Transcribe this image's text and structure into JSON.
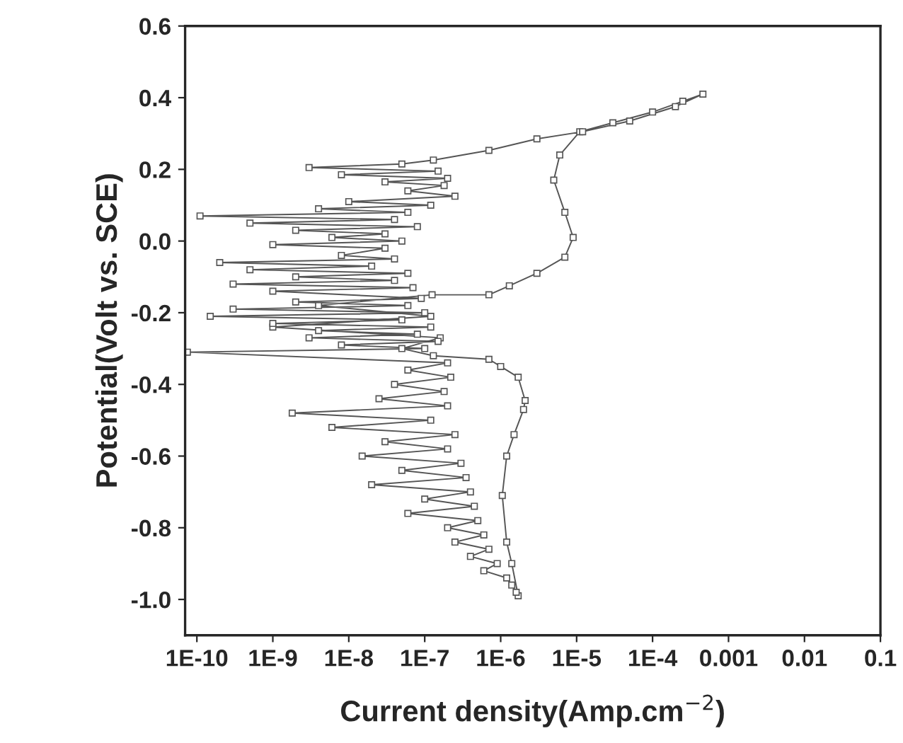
{
  "chart_data": {
    "type": "line",
    "xlabel": "Current density(Amp.cm$^{−2}$)",
    "ylabel": "Potential(Volt vs. SCE)",
    "log": "x",
    "grid": false,
    "marker": "square",
    "line_style": "solid",
    "xlim": [
      7e-11,
      0.1
    ],
    "xticks": [
      {
        "value": 1e-10,
        "label": "1E-10"
      },
      {
        "value": 1e-09,
        "label": "1E-9"
      },
      {
        "value": 1e-08,
        "label": "1E-8"
      },
      {
        "value": 1e-07,
        "label": "1E-7"
      },
      {
        "value": 1e-06,
        "label": "1E-6"
      },
      {
        "value": 1e-05,
        "label": "1E-5"
      },
      {
        "value": 0.0001,
        "label": "1E-4"
      },
      0.001,
      0.01,
      0.1
    ],
    "ylim": [
      -1.1,
      0.6
    ],
    "yticks": [
      {
        "value": -1.0,
        "label": "-1.0"
      },
      {
        "value": -0.8,
        "label": "-0.8"
      },
      {
        "value": -0.6,
        "label": "-0.6"
      },
      {
        "value": -0.4,
        "label": "-0.4"
      },
      {
        "value": -0.2,
        "label": "-0.2"
      },
      {
        "value": 0.0,
        "label": "0.0"
      },
      0.2,
      0.4,
      0.6
    ],
    "series": [
      {
        "color": "#555555",
        "x": [
          1.7e-06,
          1.4e-06,
          1.2e-06,
          1.05e-06,
          1.2e-06,
          1.5e-06,
          2e-06,
          2.1e-06,
          1.7e-06,
          1e-06,
          7e-07,
          1.3e-07,
          5e-08,
          1.6e-07,
          1e-09,
          1.2e-07,
          4e-09,
          1.25e-07,
          7e-07,
          1.3e-06,
          3e-06,
          7e-06,
          9e-06,
          7e-06,
          5e-06,
          6e-06,
          1.1e-05,
          3e-05,
          0.0001,
          0.00025,
          0.00046,
          0.0002,
          5e-05,
          1.2e-05,
          3e-06,
          7e-07,
          1.3e-07,
          5e-08,
          3e-09,
          1.5e-07,
          8e-09,
          2e-07,
          3e-08,
          1.8e-07,
          6e-08,
          2.5e-07,
          1e-08,
          1.2e-07,
          4e-09,
          6e-08,
          1.1e-10,
          4e-08,
          5e-10,
          8e-08,
          2e-09,
          3e-08,
          6e-09,
          5e-08,
          1e-09,
          3e-08,
          8e-09,
          4e-08,
          2e-10,
          2e-08,
          5e-10,
          6e-08,
          2e-09,
          4e-08,
          3e-10,
          7e-08,
          1e-09,
          9e-08,
          2e-09,
          6e-08,
          3e-10,
          1e-07,
          1.5e-10,
          5e-08,
          1e-09,
          1.2e-07,
          4e-09,
          8e-08,
          3e-09,
          1.5e-07,
          8e-09,
          1e-07,
          7.5e-11,
          2e-07,
          6e-08,
          2.2e-07,
          4e-08,
          1.8e-07,
          2.5e-08,
          2e-07,
          1.8e-09,
          1.2e-07,
          6e-09,
          2.5e-07,
          3e-08,
          2e-07,
          1.5e-08,
          3e-07,
          5e-08,
          3.5e-07,
          2e-08,
          4e-07,
          1e-07,
          4.5e-07,
          6e-08,
          5e-07,
          2e-07,
          6e-07,
          2.5e-07,
          7e-07,
          4e-07,
          9e-07,
          6e-07,
          1.2e-06,
          1.4e-06,
          1.6e-06
        ],
        "values": [
          -0.99,
          -0.9,
          -0.84,
          -0.71,
          -0.6,
          -0.54,
          -0.47,
          -0.445,
          -0.38,
          -0.35,
          -0.33,
          -0.32,
          -0.3,
          -0.27,
          -0.24,
          -0.21,
          -0.18,
          -0.15,
          -0.15,
          -0.125,
          -0.09,
          -0.045,
          0.01,
          0.08,
          0.17,
          0.24,
          0.305,
          0.33,
          0.36,
          0.39,
          0.41,
          0.375,
          0.335,
          0.305,
          0.285,
          0.253,
          0.226,
          0.215,
          0.205,
          0.195,
          0.185,
          0.175,
          0.165,
          0.155,
          0.14,
          0.125,
          0.11,
          0.1,
          0.09,
          0.08,
          0.07,
          0.06,
          0.05,
          0.04,
          0.03,
          0.02,
          0.01,
          0.0,
          -0.01,
          -0.02,
          -0.04,
          -0.05,
          -0.06,
          -0.07,
          -0.08,
          -0.09,
          -0.1,
          -0.11,
          -0.12,
          -0.13,
          -0.14,
          -0.16,
          -0.17,
          -0.18,
          -0.19,
          -0.2,
          -0.21,
          -0.22,
          -0.23,
          -0.24,
          -0.25,
          -0.26,
          -0.27,
          -0.28,
          -0.29,
          -0.3,
          -0.31,
          -0.34,
          -0.36,
          -0.38,
          -0.4,
          -0.42,
          -0.44,
          -0.46,
          -0.48,
          -0.5,
          -0.52,
          -0.54,
          -0.56,
          -0.58,
          -0.6,
          -0.62,
          -0.64,
          -0.66,
          -0.68,
          -0.7,
          -0.72,
          -0.74,
          -0.76,
          -0.78,
          -0.8,
          -0.82,
          -0.84,
          -0.86,
          -0.88,
          -0.9,
          -0.92,
          -0.94,
          -0.96,
          -0.98
        ]
      }
    ]
  }
}
